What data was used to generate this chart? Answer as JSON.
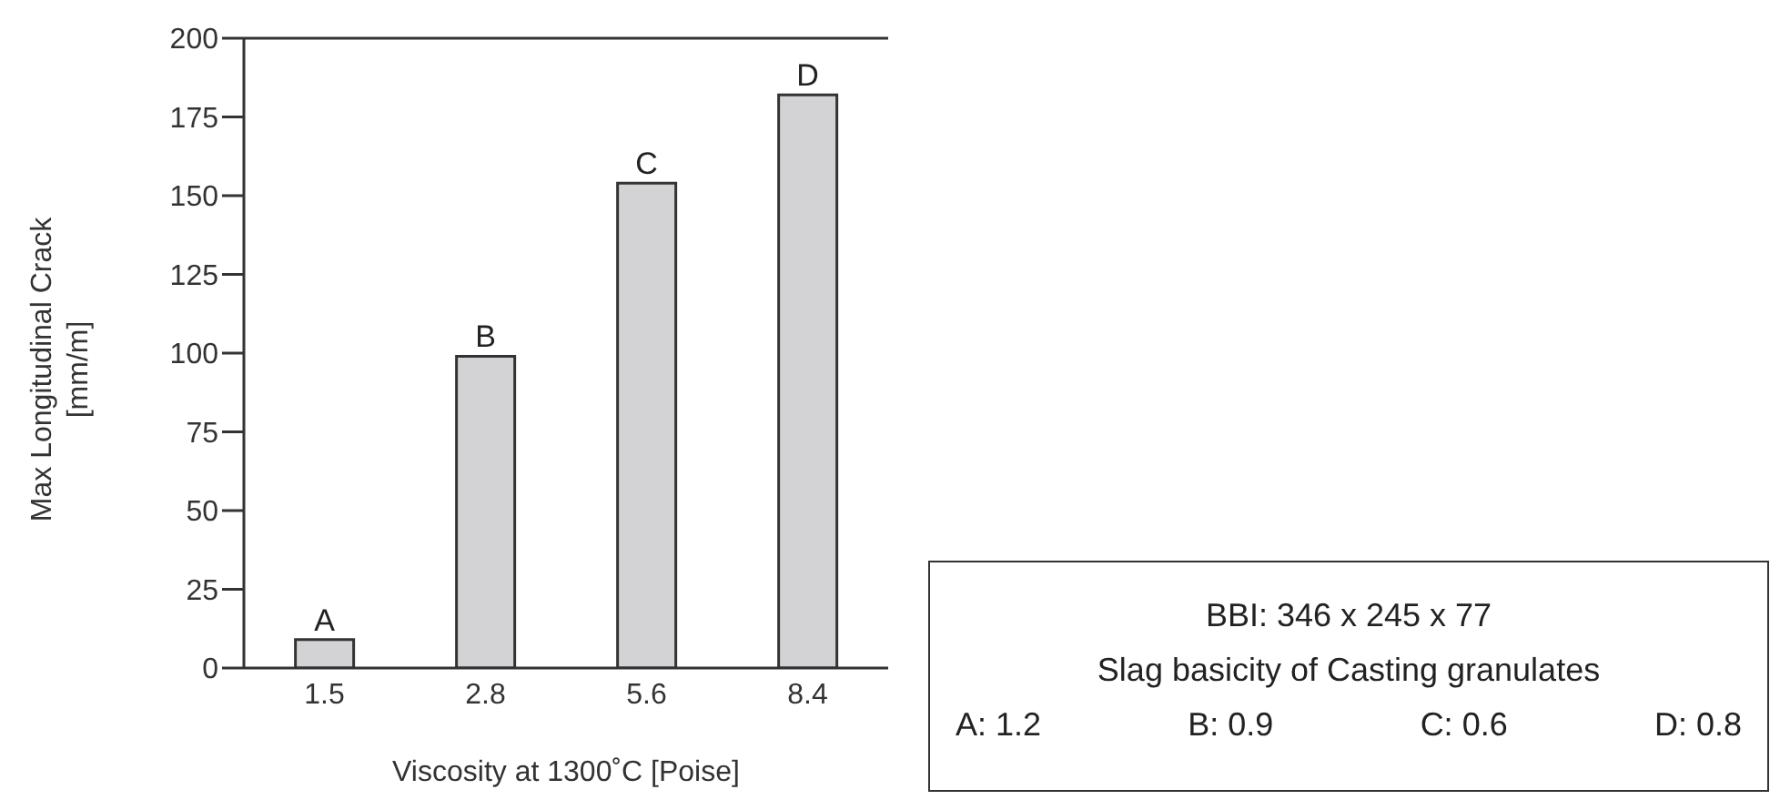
{
  "chart_data": {
    "type": "bar",
    "xlabel": "Viscosity at 1300˚C [Poise]",
    "ylabel": "Max Longitudinal Crack\n[mm/m]",
    "categories": [
      "1.5",
      "2.8",
      "5.6",
      "8.4"
    ],
    "values": [
      9,
      99,
      154,
      182
    ],
    "color": "#d3d3d5",
    "value_labels": [
      "A",
      "B",
      "C",
      "D"
    ],
    "ylim": [
      0,
      200
    ],
    "yticks": [
      0,
      25,
      50,
      75,
      100,
      125,
      150,
      175,
      200
    ],
    "grid": false,
    "annotations": [
      "BBI: 346 x 245 x 77",
      "Slag basicity of Casting granulates",
      "A: 1.2",
      "B: 0.9",
      "C: 0.6",
      "D: 0.8"
    ]
  }
}
